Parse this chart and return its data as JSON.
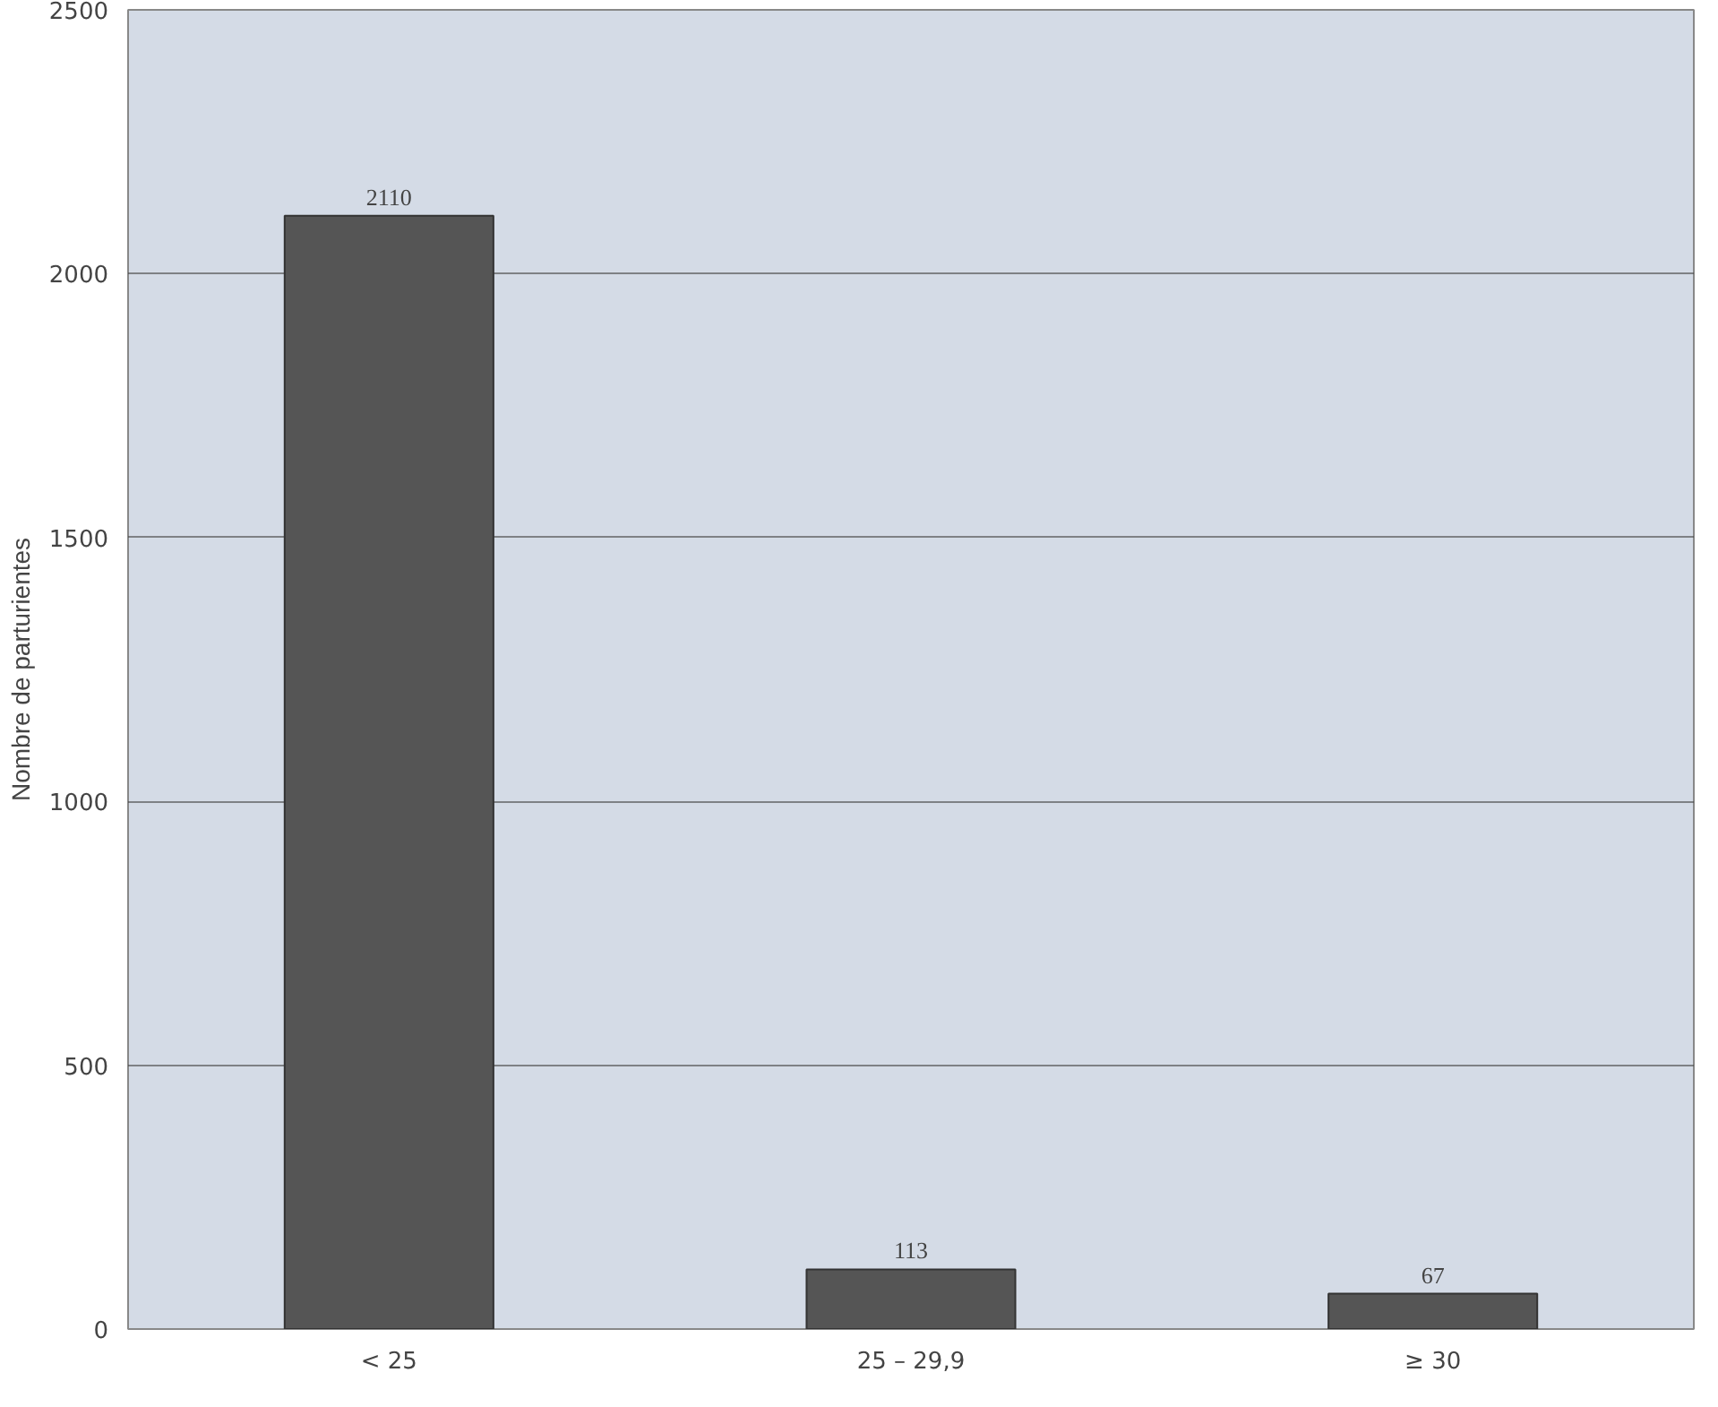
{
  "chart_data": {
    "type": "bar",
    "ylabel": "Nombre de parturientes",
    "categories": [
      "< 25",
      "25 – 29,9",
      "≥ 30"
    ],
    "values": [
      2110,
      113,
      67
    ],
    "color": "#555555",
    "ylim": [
      0,
      2500
    ],
    "yticks": [
      0,
      500,
      1000,
      1500,
      2000,
      2500
    ],
    "grid": "y",
    "data_labels": true
  }
}
